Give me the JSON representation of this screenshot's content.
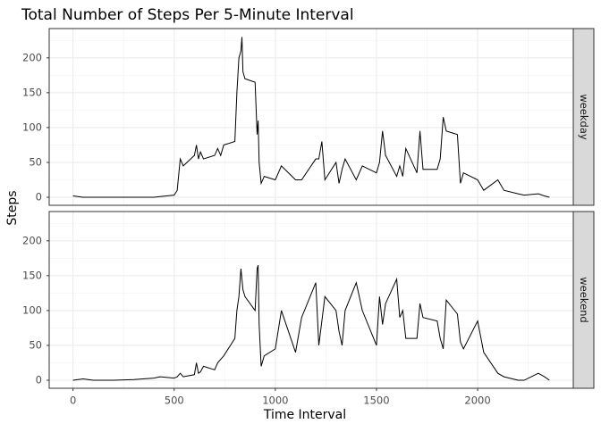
{
  "chart_data": {
    "type": "line",
    "title": "Total Number of Steps Per 5-Minute Interval",
    "x_label": "Time Interval",
    "y_label": "Steps",
    "facet": "rows",
    "grid": true,
    "x": [
      0,
      50,
      100,
      200,
      300,
      400,
      430,
      500,
      515,
      530,
      545,
      600,
      610,
      620,
      630,
      645,
      700,
      715,
      730,
      745,
      800,
      810,
      820,
      830,
      835,
      840,
      850,
      900,
      910,
      915,
      920,
      930,
      945,
      1000,
      1030,
      1100,
      1130,
      1200,
      1215,
      1230,
      1245,
      1300,
      1315,
      1330,
      1345,
      1400,
      1430,
      1500,
      1515,
      1530,
      1545,
      1600,
      1615,
      1630,
      1645,
      1700,
      1715,
      1730,
      1800,
      1815,
      1830,
      1845,
      1900,
      1915,
      1930,
      2000,
      2030,
      2100,
      2130,
      2200,
      2230,
      2300,
      2330,
      2355
    ],
    "series": [
      {
        "name": "weekday",
        "color": "#000000",
        "values": [
          2,
          0,
          0,
          0,
          0,
          0,
          1,
          3,
          10,
          55,
          45,
          60,
          75,
          55,
          65,
          55,
          60,
          70,
          60,
          75,
          80,
          150,
          200,
          210,
          230,
          180,
          170,
          165,
          90,
          110,
          50,
          20,
          30,
          25,
          45,
          25,
          25,
          55,
          55,
          80,
          25,
          50,
          20,
          40,
          55,
          25,
          45,
          35,
          50,
          95,
          60,
          30,
          45,
          30,
          70,
          35,
          95,
          40,
          40,
          55,
          115,
          95,
          90,
          20,
          35,
          25,
          10,
          25,
          10,
          5,
          3,
          5,
          2,
          0
        ]
      },
      {
        "name": "weekend",
        "color": "#000000",
        "values": [
          0,
          2,
          0,
          0,
          1,
          3,
          5,
          3,
          5,
          10,
          5,
          8,
          25,
          10,
          12,
          20,
          15,
          25,
          30,
          35,
          60,
          100,
          120,
          160,
          145,
          130,
          120,
          100,
          160,
          165,
          80,
          20,
          35,
          45,
          100,
          40,
          90,
          140,
          50,
          85,
          120,
          100,
          70,
          50,
          100,
          140,
          100,
          50,
          120,
          80,
          110,
          145,
          90,
          100,
          60,
          60,
          110,
          90,
          85,
          60,
          45,
          115,
          95,
          55,
          45,
          85,
          40,
          10,
          5,
          0,
          0,
          10,
          5,
          0
        ]
      }
    ],
    "xlim": [
      -117.75,
      2472.75
    ],
    "xticks": [
      0,
      500,
      1000,
      1500,
      2000
    ],
    "x_minor": [
      250,
      750,
      1250,
      1750,
      2250
    ],
    "ylim": [
      -11.5,
      242
    ],
    "yticks": [
      0,
      50,
      100,
      150,
      200
    ],
    "y_minor": [
      25,
      75,
      125,
      175,
      225
    ]
  }
}
